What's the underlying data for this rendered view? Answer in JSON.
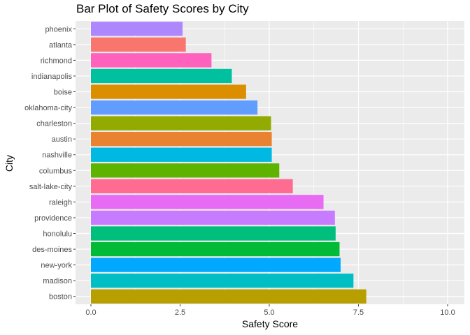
{
  "chart_data": {
    "type": "bar",
    "orientation": "horizontal",
    "title": "Bar Plot of Safety Scores by City",
    "xlabel": "Safety Score",
    "ylabel": "City",
    "xlim": [
      0,
      10
    ],
    "x_ticks": [
      "0.0",
      "2.5",
      "5.0",
      "7.5",
      "10.0"
    ],
    "grid": true,
    "legend": "none",
    "panel_background": "#ebebeb",
    "grid_color": "#ffffff",
    "categories": [
      "phoenix",
      "atlanta",
      "richmond",
      "indianapolis",
      "boise",
      "oklahoma-city",
      "charleston",
      "austin",
      "nashville",
      "columbus",
      "salt-lake-city",
      "raleigh",
      "providence",
      "honolulu",
      "des-moines",
      "new-york",
      "madison",
      "boston"
    ],
    "values": [
      2.57,
      2.66,
      3.38,
      3.95,
      4.35,
      4.67,
      5.05,
      5.07,
      5.07,
      5.28,
      5.66,
      6.52,
      6.84,
      6.86,
      6.97,
      7.0,
      7.36,
      7.72
    ],
    "colors": [
      "#AE87FF",
      "#F8766D",
      "#FF62BC",
      "#00C19F",
      "#DB8E00",
      "#619CFF",
      "#93AA00",
      "#EA8331",
      "#00B9E3",
      "#5EB300",
      "#FF6C91",
      "#E76BF3",
      "#C77CFF",
      "#00BF7D",
      "#00BA38",
      "#00A9FF",
      "#00BFC4",
      "#B79F00"
    ]
  }
}
